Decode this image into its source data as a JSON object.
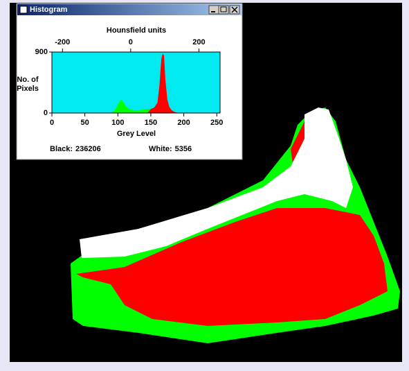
{
  "window": {
    "title": "Histogram"
  },
  "chart_data": {
    "type": "area",
    "top_axis_label": "Hounsfield units",
    "xlabel": "Grey Level",
    "ylabel": [
      "No. of",
      "Pixels"
    ],
    "xlim": [
      0,
      255
    ],
    "xticks": [
      0,
      50,
      100,
      150,
      200,
      250
    ],
    "x2lim": [
      -231,
      262
    ],
    "x2ticks": [
      -200,
      0,
      200
    ],
    "ylim": [
      0,
      900
    ],
    "yticks": [
      0,
      900
    ],
    "background": "#00eaf0",
    "series": [
      {
        "color": "#00ff00",
        "x": [
          90,
          95,
          100,
          103,
          106,
          110,
          115,
          120,
          125,
          130,
          135,
          140,
          145,
          150,
          155
        ],
        "values": [
          0,
          40,
          120,
          180,
          200,
          130,
          70,
          50,
          40,
          40,
          45,
          55,
          60,
          60,
          0
        ]
      },
      {
        "color": "#ff0000",
        "x": [
          145,
          150,
          155,
          160,
          163,
          166,
          168,
          170,
          172,
          175,
          178,
          182,
          186,
          190,
          195
        ],
        "values": [
          0,
          60,
          80,
          150,
          400,
          800,
          880,
          850,
          500,
          200,
          90,
          40,
          15,
          5,
          0
        ]
      }
    ]
  },
  "stats": [
    {
      "label": "Black:",
      "value": 236206
    },
    {
      "label": "White:",
      "value": 5356
    }
  ]
}
